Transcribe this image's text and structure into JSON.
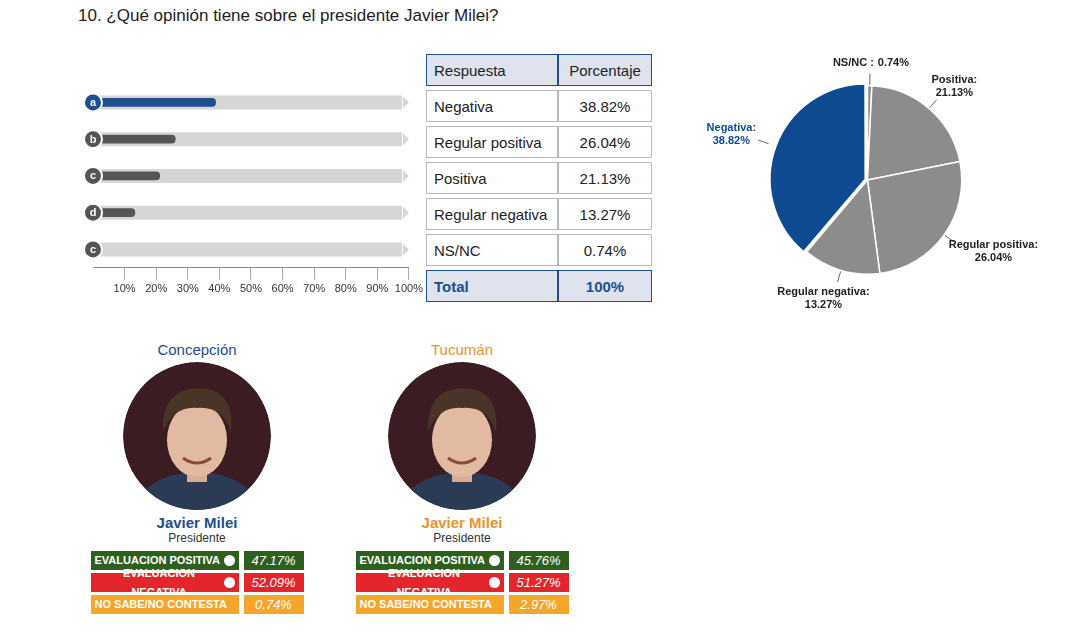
{
  "title": "10. ¿Qué opinión tiene sobre el presidente Javier Milei?",
  "chart_data": [
    {
      "type": "bar",
      "orientation": "horizontal",
      "categories": [
        "a",
        "b",
        "c",
        "d",
        "c"
      ],
      "values": [
        38.82,
        26.04,
        21.13,
        13.27,
        0.74
      ],
      "colors": [
        "#1b4f8f",
        "#555555",
        "#555555",
        "#555555",
        "#555555"
      ],
      "xlim": [
        0,
        100
      ],
      "xticks": [
        {
          "value": 10,
          "label": "10%"
        },
        {
          "value": 20,
          "label": "20%"
        },
        {
          "value": 30,
          "label": "30%"
        },
        {
          "value": 40,
          "label": "40%"
        },
        {
          "value": 50,
          "label": "50%"
        },
        {
          "value": 60,
          "label": "60%"
        },
        {
          "value": 70,
          "label": "70%"
        },
        {
          "value": 80,
          "label": "80%"
        },
        {
          "value": 90,
          "label": "90%"
        },
        {
          "value": 100,
          "label": "100%"
        }
      ],
      "grid": false
    },
    {
      "type": "pie",
      "categories": [
        "NS/NC :",
        "Positiva:",
        "Regular positiva:",
        "Regular negativa:",
        "Negativa:"
      ],
      "values": [
        0.74,
        21.13,
        26.04,
        13.27,
        38.82
      ],
      "value_labels": [
        "0.74%",
        "21.13%",
        "26.04%",
        "13.27%",
        "38.82%"
      ],
      "colors": [
        "#8c8c8c",
        "#8c8c8c",
        "#8c8c8c",
        "#8c8c8c",
        "#0d4a90"
      ],
      "data_labels": true
    }
  ],
  "table": {
    "header": [
      "Respuesta",
      "Porcentaje"
    ],
    "rows": [
      [
        "Negativa",
        "38.82%"
      ],
      [
        "Regular positiva",
        "26.04%"
      ],
      [
        "Positiva",
        "21.13%"
      ],
      [
        "Regular negativa",
        "13.27%"
      ],
      [
        "NS/NC",
        "0.74%"
      ]
    ],
    "total": [
      "Total",
      "100%"
    ]
  },
  "cards": [
    {
      "title": "Concepción",
      "name": "Javier Milei",
      "role": "Presidente",
      "rows": [
        {
          "label": "EVALUACION POSITIVA",
          "value": "47.17%"
        },
        {
          "label": "EVALUACION NEGATIVA",
          "value": "52.09%"
        },
        {
          "label": "NO SABE/NO CONTESTA",
          "value": "0.74%"
        }
      ]
    },
    {
      "title": "Tucumán",
      "name": "Javier Milei",
      "role": "Presidente",
      "rows": [
        {
          "label": "EVALUACION POSITIVA",
          "value": "45.76%"
        },
        {
          "label": "EVALUACION NEGATIVA",
          "value": "51.27%"
        },
        {
          "label": "NO SABE/NO CONTESTA",
          "value": "2.97%"
        }
      ]
    }
  ]
}
